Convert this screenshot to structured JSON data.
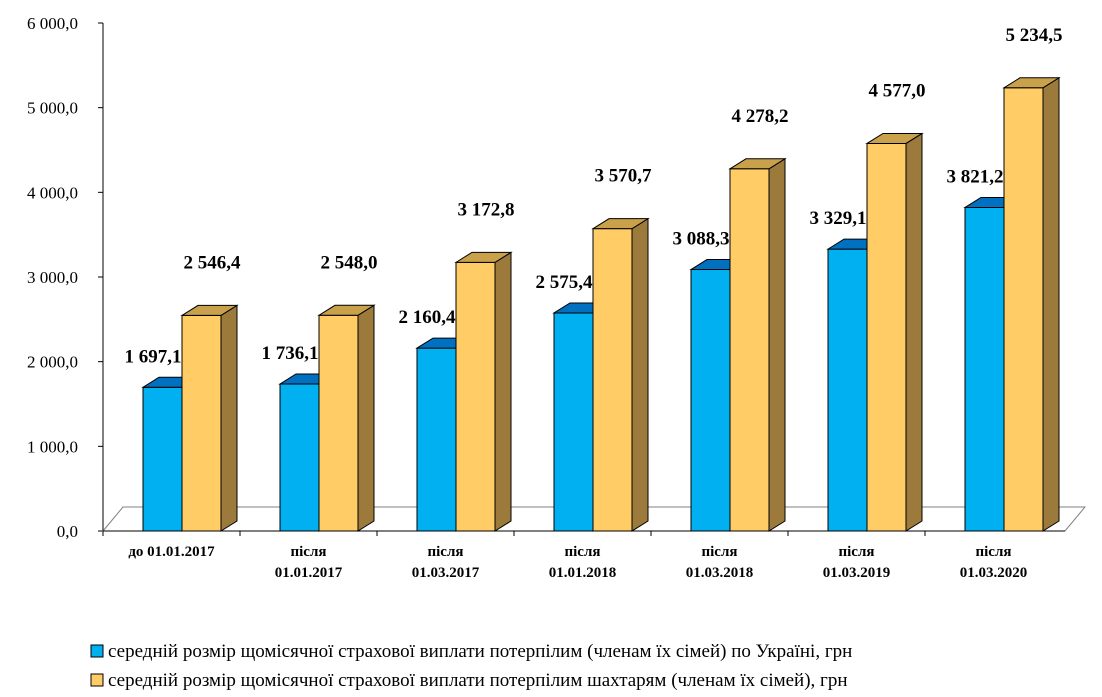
{
  "chart_data": {
    "type": "bar",
    "categories": [
      [
        "до 01.01.2017"
      ],
      [
        "після",
        "01.01.2017"
      ],
      [
        "після",
        "01.03.2017"
      ],
      [
        "після",
        "01.01.2018"
      ],
      [
        "після",
        "01.03.2018"
      ],
      [
        "після",
        "01.03.2019"
      ],
      [
        "після",
        "01.03.2020"
      ]
    ],
    "series": [
      {
        "name": "середній розмір щомісячної страхової виплати потерпілим (членам їх сімей) по Україні, грн",
        "values": [
          1697.1,
          1736.1,
          2160.4,
          2575.4,
          3088.3,
          3329.1,
          3821.2
        ],
        "labels": [
          "1 697,1",
          "1 736,1",
          "2 160,4",
          "2 575,4",
          "3 088,3",
          "3 329,1",
          "3 821,2"
        ],
        "color": "#00B0F0",
        "top_color": "#0070C0",
        "side_color": "#0062A8"
      },
      {
        "name": "середній розмір щомісячної страхової виплати потерпілим шахтарям (членам їх сімей), грн",
        "values": [
          2546.4,
          2548.0,
          3172.8,
          3570.7,
          4278.2,
          4577.0,
          5234.5
        ],
        "labels": [
          "2 546,4",
          "2 548,0",
          "3 172,8",
          "3 570,7",
          "4 278,2",
          "4 577,0",
          "5 234,5"
        ],
        "color": "#FFCC66",
        "top_color": "#C9A14A",
        "side_color": "#9C7A3C"
      }
    ],
    "yticks": [
      "0,0",
      "1 000,0",
      "2 000,0",
      "3 000,0",
      "4 000,0",
      "5 000,0",
      "6 000,0"
    ],
    "ylim": [
      0,
      6000
    ],
    "legend_position": "bottom",
    "grid": false
  }
}
